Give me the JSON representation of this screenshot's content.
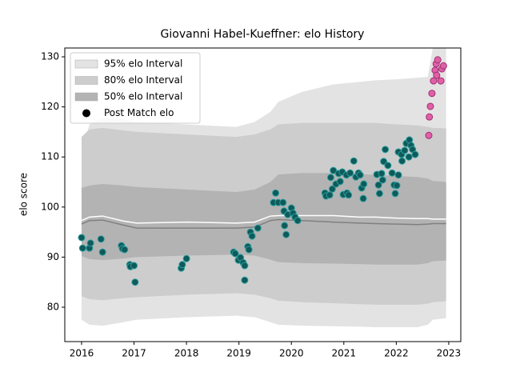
{
  "chart_data": {
    "type": "band",
    "title": "Giovanni Habel-Kueffner: elo History",
    "ylabel": "elo score",
    "xlim": [
      2015.68,
      2023.23
    ],
    "ylim": [
      73.13,
      131.76
    ],
    "xticks": [
      2016,
      2017,
      2018,
      2019,
      2020,
      2021,
      2022,
      2023
    ],
    "yticks": [
      80,
      90,
      100,
      110,
      120,
      130
    ],
    "legend": "upper left",
    "band_x": [
      2016.0,
      2016.15,
      2016.4,
      2016.8,
      2017.05,
      2018.0,
      2018.95,
      2019.3,
      2019.6,
      2019.75,
      2020.2,
      2020.8,
      2021.3,
      2021.6,
      2022.0,
      2022.4,
      2022.6,
      2022.7,
      2022.95
    ],
    "bands": [
      {
        "name": "95% elo Interval",
        "color": "#e3e3e3",
        "upper": [
          111,
          116.5,
          117.8,
          117.5,
          117,
          116.5,
          116,
          117,
          119,
          121,
          123,
          124.5,
          125,
          125.3,
          125.5,
          125.8,
          126,
          132,
          132
        ],
        "lower": [
          77.5,
          76.5,
          76.3,
          77,
          77.5,
          78,
          78.3,
          78,
          77,
          76.5,
          76.3,
          76.2,
          76.1,
          76,
          76,
          76,
          76.5,
          77.5,
          77.8
        ]
      },
      {
        "name": "80% elo Interval",
        "color": "#cdcdcd",
        "upper": [
          114,
          115.5,
          115.8,
          115.3,
          115,
          114.5,
          114,
          114.5,
          115.5,
          116.5,
          116.8,
          116.8,
          116.8,
          116.8,
          116.5,
          116.3,
          116,
          115.8,
          115.7
        ],
        "lower": [
          82.2,
          81.6,
          81.4,
          81.8,
          82,
          82.5,
          82.8,
          82.5,
          81.8,
          81.3,
          81,
          80.8,
          80.6,
          80.5,
          80.5,
          80.5,
          80.7,
          81,
          81.2
        ]
      },
      {
        "name": "50% elo Interval",
        "color": "#b3b3b3",
        "upper": [
          103.8,
          104.3,
          104.6,
          104.3,
          104,
          103.5,
          103,
          103.5,
          105,
          106.5,
          106.8,
          106.8,
          106.6,
          106.4,
          106.2,
          106,
          105.7,
          105.2,
          105
        ],
        "lower": [
          90.2,
          89.6,
          89.4,
          89.7,
          90,
          90.3,
          90.5,
          90.3,
          89.5,
          89,
          88.8,
          88.7,
          88.6,
          88.5,
          88.5,
          88.5,
          88.8,
          89.2,
          89.3
        ]
      }
    ],
    "lines": [
      {
        "color": "#808080",
        "values": [
          96.6,
          97.3,
          97.4,
          96.4,
          95.8,
          95.8,
          95.8,
          96.0,
          97.3,
          97.5,
          97.3,
          97.0,
          96.8,
          96.7,
          96.6,
          96.5,
          96.6,
          96.7,
          96.7
        ]
      },
      {
        "color": "#ffffff",
        "values": [
          97.3,
          98.0,
          98.2,
          97.2,
          96.8,
          97.0,
          96.8,
          97.0,
          98.2,
          98.3,
          98.3,
          98.3,
          98.0,
          98.0,
          97.8,
          97.7,
          97.7,
          97.6,
          97.6
        ]
      }
    ],
    "points": [
      {
        "name": "Post Match elo",
        "legend_color": "#000000",
        "color": "#0f5a5a",
        "edgecolor": "#2a9d9d",
        "x": [
          2016.0,
          2016.02,
          2016.15,
          2016.17,
          2016.37,
          2016.4,
          2016.76,
          2016.78,
          2016.82,
          2016.92,
          2016.93,
          2017.0,
          2017.02,
          2017.9,
          2017.92,
          2018.0,
          2018.9,
          2018.93,
          2018.99,
          2019.03,
          2019.08,
          2019.11,
          2019.11,
          2019.17,
          2019.19,
          2019.22,
          2019.25,
          2019.36,
          2019.66,
          2019.7,
          2019.75,
          2019.84,
          2019.86,
          2019.87,
          2019.9,
          2019.93,
          2020.0,
          2020.03,
          2020.07,
          2020.12,
          2020.64,
          2020.66,
          2020.73,
          2020.75,
          2020.78,
          2020.8,
          2020.85,
          2020.9,
          2020.93,
          2020.97,
          2020.99,
          2021.05,
          2021.06,
          2021.09,
          2021.12,
          2021.19,
          2021.23,
          2021.28,
          2021.31,
          2021.34,
          2021.37,
          2021.38,
          2021.63,
          2021.66,
          2021.68,
          2021.72,
          2021.74,
          2021.76,
          2021.79,
          2021.84,
          2021.92,
          2021.96,
          2021.98,
          2022.01,
          2022.04,
          2022.04,
          2022.1,
          2022.11,
          2022.16,
          2022.19,
          2022.24,
          2022.25,
          2022.28,
          2022.31,
          2022.36
        ],
        "values": [
          93.9,
          91.8,
          91.8,
          92.8,
          93.6,
          91.0,
          92.3,
          91.7,
          91.5,
          88.5,
          88.1,
          88.3,
          85.0,
          87.8,
          88.5,
          89.7,
          91.0,
          90.7,
          89.4,
          89.9,
          88.9,
          88.3,
          85.4,
          92.1,
          91.5,
          95.0,
          94.2,
          95.8,
          100.9,
          102.8,
          100.9,
          100.9,
          99.2,
          96.3,
          94.5,
          98.5,
          99.8,
          98.8,
          98.0,
          97.3,
          102.8,
          102.2,
          102.4,
          105.9,
          103.6,
          107.3,
          104.6,
          106.7,
          105.1,
          107.0,
          102.5,
          106.4,
          102.8,
          102.4,
          106.8,
          109.2,
          106.0,
          106.8,
          106.4,
          103.8,
          101.7,
          104.6,
          106.5,
          104.4,
          102.7,
          106.7,
          105.4,
          109.1,
          111.5,
          108.3,
          106.8,
          104.4,
          102.7,
          104.3,
          106.4,
          111.0,
          110.5,
          109.2,
          111.3,
          112.7,
          110.0,
          113.4,
          112.3,
          111.5,
          110.5
        ]
      },
      {
        "color": "#e060a8",
        "edgecolor": "#a03070",
        "x": [
          2022.62,
          2022.63,
          2022.65,
          2022.68,
          2022.71,
          2022.74,
          2022.76,
          2022.77,
          2022.79,
          2022.85,
          2022.87,
          2022.9
        ],
        "values": [
          114.3,
          118.0,
          120.1,
          122.7,
          125.2,
          127.3,
          128.6,
          126.3,
          129.4,
          125.2,
          127.6,
          128.2
        ]
      }
    ]
  }
}
